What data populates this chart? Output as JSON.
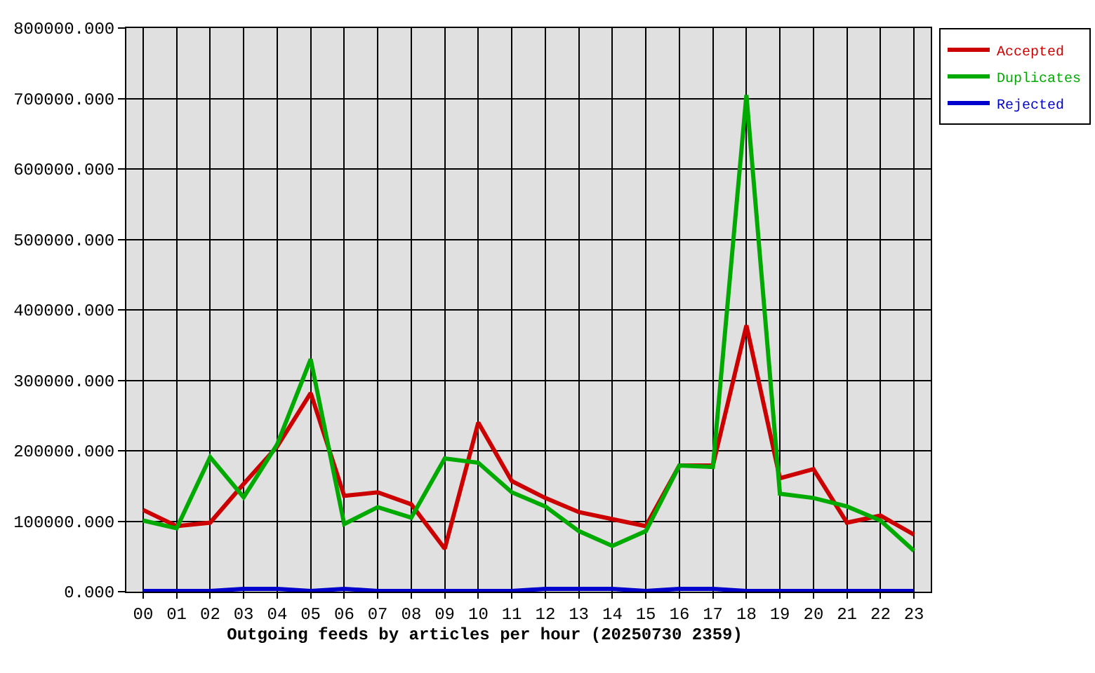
{
  "chart_data": {
    "type": "line",
    "title": "Outgoing feeds by articles per hour (20250730 2359)",
    "categories": [
      "00",
      "01",
      "02",
      "03",
      "04",
      "05",
      "06",
      "07",
      "08",
      "09",
      "10",
      "11",
      "12",
      "13",
      "14",
      "15",
      "16",
      "17",
      "18",
      "19",
      "20",
      "21",
      "22",
      "23"
    ],
    "series": [
      {
        "name": "Accepted",
        "color": "#cc0000",
        "values": [
          116000,
          93000,
          98000,
          153000,
          206000,
          282000,
          136000,
          141000,
          124000,
          61000,
          240000,
          157000,
          133000,
          113000,
          103000,
          93000,
          179000,
          179000,
          378000,
          161000,
          174000,
          98000,
          108000,
          81000
        ]
      },
      {
        "name": "Duplicates",
        "color": "#00aa00",
        "values": [
          101000,
          90000,
          191000,
          134000,
          209000,
          330000,
          96000,
          120000,
          105000,
          189000,
          183000,
          141000,
          121000,
          86000,
          65000,
          86000,
          179000,
          177000,
          705000,
          139000,
          133000,
          121000,
          101000,
          58000
        ]
      },
      {
        "name": "Rejected",
        "color": "#0000cc",
        "values": [
          1000,
          1000,
          1000,
          4000,
          4000,
          1000,
          4000,
          1000,
          1000,
          1000,
          1000,
          1000,
          4000,
          4000,
          4000,
          1000,
          4000,
          4000,
          1000,
          1000,
          1000,
          1000,
          1000,
          1000
        ]
      }
    ],
    "ylim": [
      0,
      800000
    ],
    "yticks": [
      {
        "value": 0,
        "label": "0.000"
      },
      {
        "value": 100000,
        "label": "100000.000"
      },
      {
        "value": 200000,
        "label": "200000.000"
      },
      {
        "value": 300000,
        "label": "300000.000"
      },
      {
        "value": 400000,
        "label": "400000.000"
      },
      {
        "value": 500000,
        "label": "500000.000"
      },
      {
        "value": 600000,
        "label": "600000.000"
      },
      {
        "value": 700000,
        "label": "700000.000"
      },
      {
        "value": 800000,
        "label": "800000.000"
      }
    ],
    "grid": true,
    "legend": "top right",
    "line_style": "solid"
  }
}
